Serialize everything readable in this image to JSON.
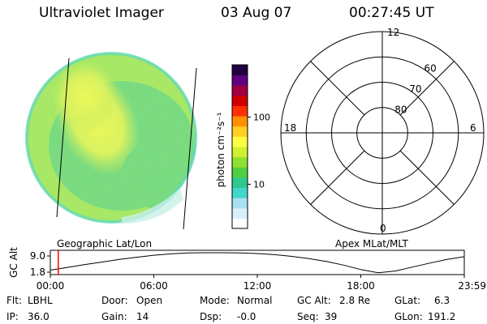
{
  "header": {
    "instrument": "Ultraviolet Imager",
    "date": "03 Aug 07",
    "time": "00:27:45 UT"
  },
  "colorbar": {
    "unit_label": "photon cm⁻²s⁻¹",
    "tick_labels": [
      "100",
      "10"
    ],
    "tick_values": [
      100,
      10
    ],
    "range": [
      2.2,
      600
    ],
    "scale": "log",
    "colors": [
      "#ffffff",
      "#d8f0f8",
      "#a8e0f0",
      "#40d8c8",
      "#30c890",
      "#50d040",
      "#90e030",
      "#d0f030",
      "#ffff40",
      "#ffd020",
      "#ff9000",
      "#ff3000",
      "#d00000",
      "#a00040",
      "#600080",
      "#200040"
    ]
  },
  "globe": {
    "label": "Geographic Lat/Lon",
    "colors": {
      "bright": "#f0f840",
      "mid": "#a8e850",
      "dim": "#70d870",
      "edge": "#60d8c0",
      "faint": "#c8f0e8"
    }
  },
  "polar": {
    "label": "Apex  MLat/MLT",
    "mlt_labels": [
      "12",
      "18",
      "6",
      "0"
    ],
    "lat_labels": [
      "60",
      "70",
      "80"
    ],
    "lat_values": [
      60,
      70,
      80
    ]
  },
  "chart_data": {
    "type": "line",
    "ylabel": "GC Alt",
    "yticks": [
      "9.0",
      "1.8"
    ],
    "ylim": [
      1.8,
      9.0
    ],
    "xticks": [
      "00:00",
      "06:00",
      "12:00",
      "18:00",
      "23:59"
    ],
    "x_hours": [
      0,
      1,
      2,
      3,
      4,
      5,
      6,
      7,
      8,
      9,
      10,
      11,
      12,
      13,
      14,
      15,
      16,
      17,
      18,
      19,
      20,
      21,
      22,
      23,
      24
    ],
    "values": [
      2.8,
      3.8,
      4.8,
      5.7,
      6.6,
      7.4,
      8.1,
      8.6,
      8.9,
      9.0,
      9.0,
      8.9,
      8.7,
      8.3,
      7.7,
      6.9,
      5.9,
      4.6,
      3.0,
      1.9,
      2.5,
      3.9,
      5.3,
      6.6,
      7.6
    ],
    "current_time_hours": 0.46,
    "marker_color": "#ff0000"
  },
  "status": {
    "flt_label": "Flt:",
    "flt": "LBHL",
    "ip_label": "IP:",
    "ip": "36.0",
    "door_label": "Door:",
    "door": "Open",
    "gain_label": "Gain:",
    "gain": "14",
    "mode_label": "Mode:",
    "mode": "Normal",
    "dsp_label": "Dsp:",
    "dsp": "-0.0",
    "gcalt_label": "GC Alt:",
    "gcalt": "2.8 Re",
    "seq_label": "Seq:",
    "seq": "39",
    "glat_label": "GLat:",
    "glat": "6.3",
    "glon_label": "GLon:",
    "glon": "191.2"
  }
}
